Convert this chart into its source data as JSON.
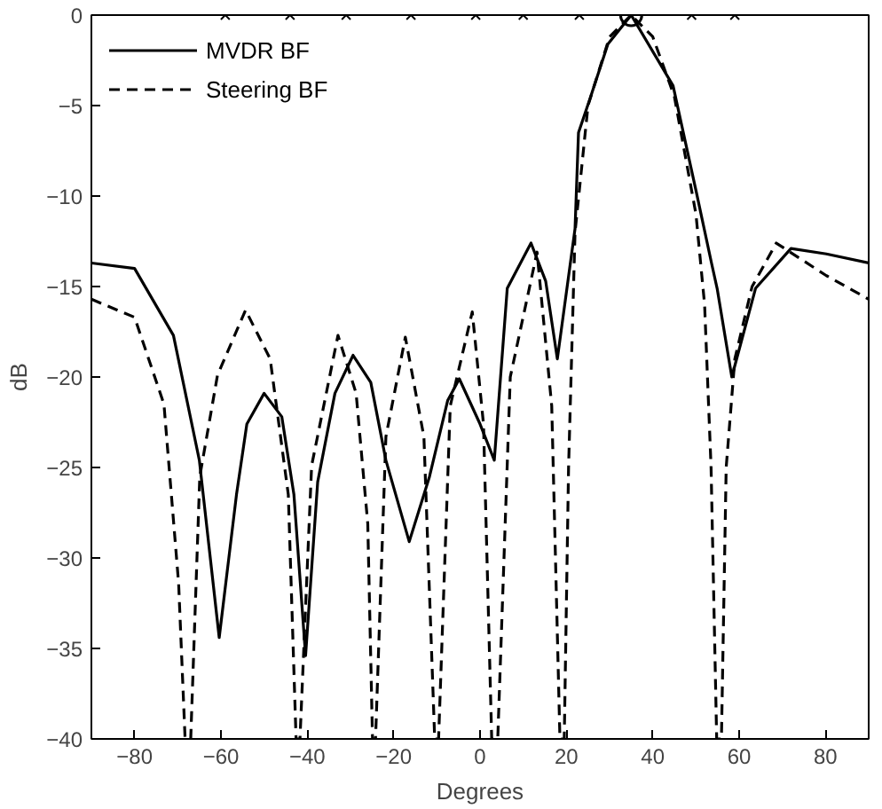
{
  "chart_data": {
    "type": "line",
    "xlabel": "Degrees",
    "ylabel": "dB",
    "xlim": [
      -90,
      90
    ],
    "ylim": [
      -40,
      0
    ],
    "xticks": [
      -80,
      -60,
      -40,
      -20,
      0,
      20,
      40,
      60,
      80
    ],
    "yticks": [
      -40,
      -35,
      -30,
      -25,
      -20,
      -15,
      -10,
      -5,
      0
    ],
    "grid": false,
    "legend": "top left",
    "series": [
      {
        "name": "MVDR BF",
        "color": "#000000",
        "line_style": "solid",
        "x": [
          -90,
          -80,
          -71,
          -65,
          -60.4,
          -56.4,
          -54,
          -50,
          -45.9,
          -43.1,
          -40.4,
          -37.6,
          -33.6,
          -29.4,
          -25.3,
          -21.8,
          -16.4,
          -11.7,
          -7.5,
          -4.8,
          0,
          3.3,
          6.3,
          11.8,
          15.2,
          17.9,
          22,
          22.8,
          25.5,
          29.6,
          35,
          44.7,
          50.1,
          53.6,
          54.9,
          58.3,
          63.8,
          72,
          80.2,
          90
        ],
        "values": [
          -13.7,
          -14,
          -17.7,
          -24.6,
          -34.4,
          -26.5,
          -22.6,
          -20.9,
          -22.2,
          -26.5,
          -35.4,
          -25.8,
          -20.9,
          -18.8,
          -20.3,
          -24.6,
          -29.1,
          -25.5,
          -21.3,
          -20.1,
          -22.6,
          -24.6,
          -15.1,
          -12.6,
          -14.7,
          -19,
          -11.8,
          -6.5,
          -4.6,
          -1.6,
          0,
          -3.9,
          -9.8,
          -13.7,
          -15.1,
          -20,
          -15.1,
          -12.9,
          -13.2,
          -13.7
        ]
      },
      {
        "name": "Steering BF",
        "color": "#000000",
        "line_style": "dashed",
        "x": [
          -90,
          -80,
          -73.2,
          -69.8,
          -68.3,
          -67,
          -64.9,
          -60.8,
          -54.3,
          -48.6,
          -44.4,
          -42.6,
          -41.7,
          -39,
          -32.9,
          -28.7,
          -26,
          -24.9,
          -24.2,
          -21.8,
          -17.3,
          -13,
          -10.5,
          -9.6,
          -6.9,
          -1.8,
          0.8,
          2.7,
          4.1,
          7,
          13.2,
          16.6,
          18.5,
          19.5,
          20.5,
          22,
          25,
          30,
          35,
          40,
          45,
          50,
          52,
          53.5,
          54.8,
          55.9,
          57,
          59,
          63,
          68.6,
          80.2,
          90
        ],
        "values": [
          -15.7,
          -16.7,
          -21.5,
          -31.4,
          -40,
          -40,
          -25.5,
          -19.9,
          -16.3,
          -19,
          -26.5,
          -40,
          -40,
          -24.9,
          -17.7,
          -20.9,
          -28.1,
          -40,
          -40,
          -23.3,
          -17.8,
          -23.3,
          -40,
          -40,
          -21.6,
          -16.4,
          -22.6,
          -40,
          -40,
          -20,
          -13.1,
          -21.6,
          -40,
          -40,
          -25,
          -12,
          -5,
          -1.2,
          0,
          -1.2,
          -4.5,
          -11,
          -16,
          -25,
          -40,
          -40,
          -25,
          -19,
          -15,
          -12.6,
          -14.4,
          -15.7
        ]
      },
      {
        "type": "scatter",
        "marker": "cross",
        "color": "#000000",
        "x": [
          -59,
          -44,
          -31,
          -16,
          -1,
          10,
          23,
          49,
          59
        ],
        "values": [
          0,
          0,
          0,
          0,
          0,
          0,
          0,
          0,
          0
        ]
      },
      {
        "type": "scatter",
        "marker": "circle",
        "color": "#000000",
        "x": [
          35
        ],
        "values": [
          0
        ]
      }
    ]
  }
}
